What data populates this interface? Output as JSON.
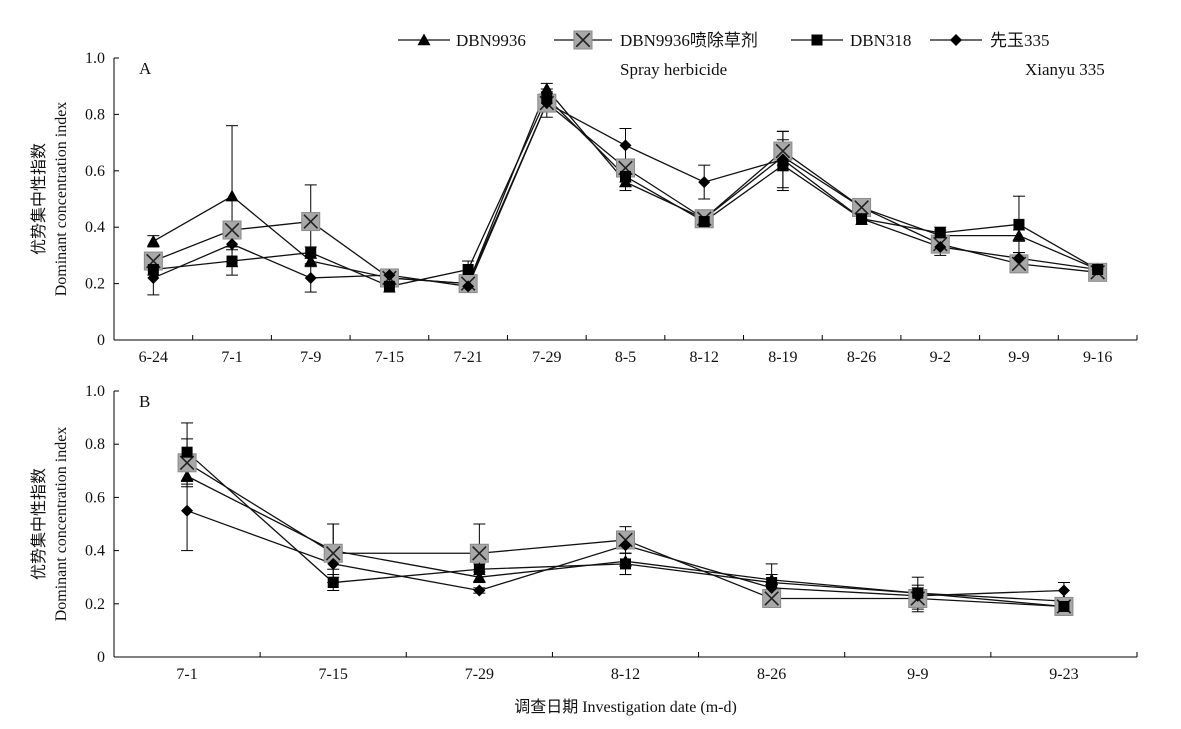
{
  "chart_data": [
    {
      "type": "line",
      "panel_label": "A",
      "categories": [
        "6-24",
        "7-1",
        "7-9",
        "7-15",
        "7-21",
        "7-29",
        "8-5",
        "8-12",
        "8-19",
        "8-26",
        "9-2",
        "9-9",
        "9-16"
      ],
      "ylabel_cn": "优势集中性指数",
      "ylabel_en": "Dominant concentration index",
      "ylim": [
        0,
        1.0
      ],
      "yticks": [
        "0",
        "0.2",
        "0.4",
        "0.6",
        "0.8",
        "1.0"
      ],
      "series": [
        {
          "name": "DBN9936",
          "marker": "triangle",
          "values": [
            0.35,
            0.51,
            0.28,
            0.22,
            0.2,
            0.89,
            0.56,
            0.43,
            0.65,
            0.47,
            0.37,
            0.37,
            0.25
          ],
          "err": [
            0.02,
            0.25,
            0.02,
            0.02,
            0.02,
            0.02,
            0.03,
            0.02,
            0.03,
            0.02,
            0.02,
            0.02,
            0.01
          ]
        },
        {
          "name": "DBN9936喷除草剂",
          "name2": "Spray herbicide",
          "marker": "x-square",
          "values": [
            0.28,
            0.39,
            0.42,
            0.22,
            0.2,
            0.84,
            0.61,
            0.43,
            0.67,
            0.47,
            0.34,
            0.27,
            0.24
          ],
          "err": [
            0.02,
            0.02,
            0.13,
            0.02,
            0.02,
            0.05,
            0.03,
            0.02,
            0.07,
            0.02,
            0.02,
            0.02,
            0.01
          ]
        },
        {
          "name": "DBN318",
          "marker": "square",
          "values": [
            0.25,
            0.28,
            0.31,
            0.19,
            0.25,
            0.86,
            0.58,
            0.42,
            0.62,
            0.43,
            0.38,
            0.41,
            0.25
          ],
          "err": [
            0.02,
            0.05,
            0.02,
            0.02,
            0.03,
            0.02,
            0.02,
            0.02,
            0.09,
            0.02,
            0.02,
            0.1,
            0.01
          ]
        },
        {
          "name": "先玉335",
          "name2": "Xianyu 335",
          "marker": "diamond",
          "values": [
            0.22,
            0.34,
            0.22,
            0.23,
            0.19,
            0.84,
            0.69,
            0.56,
            0.64,
            0.43,
            0.33,
            0.29,
            0.25
          ],
          "err": [
            0.06,
            0.02,
            0.05,
            0.02,
            0.02,
            0.02,
            0.06,
            0.06,
            0.1,
            0.02,
            0.03,
            0.02,
            0.01
          ]
        }
      ]
    },
    {
      "type": "line",
      "panel_label": "B",
      "categories": [
        "7-1",
        "7-15",
        "7-29",
        "8-12",
        "8-26",
        "9-9",
        "9-23"
      ],
      "ylabel_cn": "优势集中性指数",
      "ylabel_en": "Dominant concentration index",
      "xlabel": "调查日期 Investigation date (m-d)",
      "ylim": [
        0,
        1.0
      ],
      "yticks": [
        "0",
        "0.2",
        "0.4",
        "0.6",
        "0.8",
        "1.0"
      ],
      "series": [
        {
          "name": "DBN9936",
          "marker": "triangle",
          "values": [
            0.68,
            0.4,
            0.3,
            0.36,
            0.29,
            0.24,
            0.21
          ],
          "err": [
            0.03,
            0.1,
            0.02,
            0.05,
            0.02,
            0.02,
            0.01
          ]
        },
        {
          "name": "DBN9936喷除草剂",
          "name2": "Spray herbicide",
          "marker": "x-square",
          "values": [
            0.73,
            0.39,
            0.39,
            0.44,
            0.22,
            0.22,
            0.19
          ],
          "err": [
            0.09,
            0.11,
            0.11,
            0.05,
            0.02,
            0.05,
            0.01
          ]
        },
        {
          "name": "DBN318",
          "marker": "square",
          "values": [
            0.77,
            0.28,
            0.33,
            0.35,
            0.28,
            0.24,
            0.19
          ],
          "err": [
            0.11,
            0.03,
            0.02,
            0.04,
            0.07,
            0.06,
            0.01
          ]
        },
        {
          "name": "先玉335",
          "name2": "Xianyu 335",
          "marker": "diamond",
          "values": [
            0.55,
            0.35,
            0.25,
            0.42,
            0.26,
            0.23,
            0.25
          ],
          "err": [
            0.15,
            0.02,
            0.01,
            0.03,
            0.02,
            0.02,
            0.03
          ]
        }
      ]
    }
  ]
}
